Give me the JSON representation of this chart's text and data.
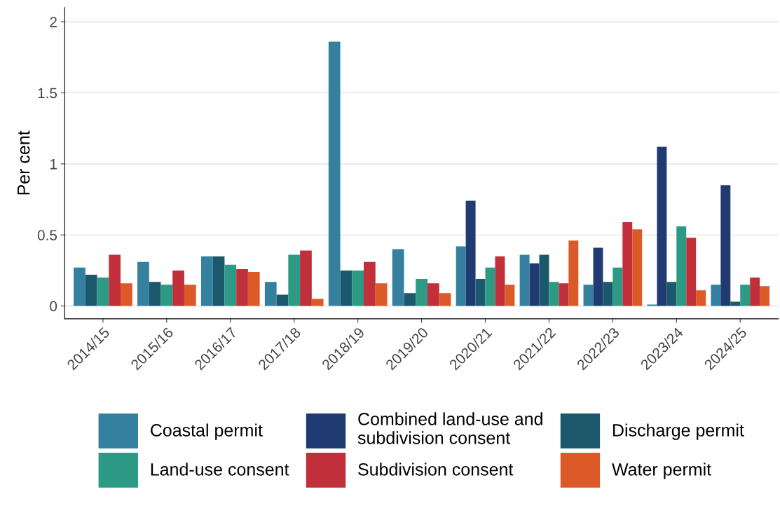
{
  "chart_data": {
    "type": "bar",
    "ylabel": "Per cent",
    "categories": [
      "2014/15",
      "2015/16",
      "2016/17",
      "2017/18",
      "2018/19",
      "2019/20",
      "2020/21",
      "2021/22",
      "2022/23",
      "2023/24",
      "2024/25"
    ],
    "series": [
      {
        "name": "Coastal permit",
        "color": "#35809e",
        "values": [
          0.27,
          0.31,
          0.35,
          0.17,
          1.86,
          0.4,
          0.42,
          0.36,
          0.15,
          0.01,
          0.15
        ]
      },
      {
        "name": "Combined land-use and\nsubdivision consent",
        "color": "#203a72",
        "values": [
          null,
          null,
          null,
          null,
          null,
          null,
          0.74,
          0.3,
          0.41,
          1.12,
          0.85
        ]
      },
      {
        "name": "Discharge permit",
        "color": "#1c586b",
        "values": [
          0.22,
          0.17,
          0.35,
          0.08,
          0.25,
          0.09,
          0.19,
          0.36,
          0.17,
          0.17,
          0.03
        ]
      },
      {
        "name": "Land-use consent",
        "color": "#2c9a85",
        "values": [
          0.2,
          0.15,
          0.29,
          0.36,
          0.25,
          0.19,
          0.27,
          0.17,
          0.27,
          0.56,
          0.15
        ]
      },
      {
        "name": "Subdivision consent",
        "color": "#c02f3a",
        "values": [
          0.36,
          0.25,
          0.26,
          0.39,
          0.31,
          0.16,
          0.35,
          0.16,
          0.59,
          0.48,
          0.2
        ]
      },
      {
        "name": "Water permit",
        "color": "#dc5a28",
        "values": [
          0.16,
          0.15,
          0.24,
          0.05,
          0.16,
          0.09,
          0.15,
          0.46,
          0.54,
          0.11,
          0.14
        ]
      }
    ],
    "ylim": [
      -0.09,
      2.1
    ],
    "yticks": [
      0,
      0.5,
      1,
      1.5,
      2
    ],
    "grid": "y",
    "legend": "bottom"
  }
}
